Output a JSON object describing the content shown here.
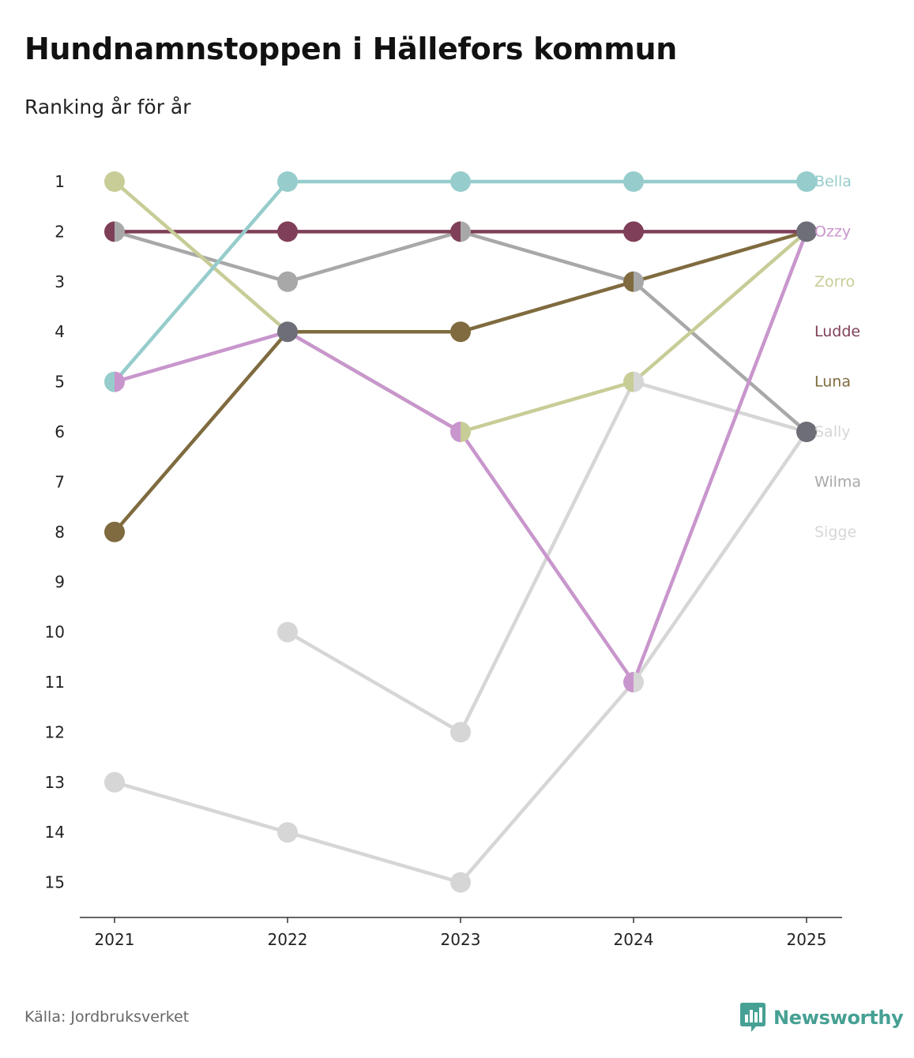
{
  "title": "Hundnamnstoppen i Hällefors kommun",
  "subtitle": "Ranking år för år",
  "source": "Källa: Jordbruksverket",
  "brand": "Newsworthy",
  "brand_color": "#46a093",
  "brand_icon": "bar-chart-speech-bubble-icon",
  "chart_data": {
    "type": "line",
    "subtitle": "Ranking år för år",
    "xlabel": "",
    "ylabel": "",
    "x": [
      "2021",
      "2022",
      "2023",
      "2024",
      "2025"
    ],
    "y_ticks": [
      "1",
      "2",
      "3",
      "4",
      "5",
      "6",
      "7",
      "8",
      "9",
      "10",
      "11",
      "12",
      "13",
      "14",
      "15"
    ],
    "ylim": [
      1,
      15
    ],
    "y_inverted": true,
    "grid": false,
    "legend": "right, labels at line ends",
    "series": [
      {
        "name": "Sigge",
        "color": "#d6d6d6",
        "values": [
          13,
          14,
          15,
          11,
          6
        ]
      },
      {
        "name": "Wilma",
        "color": "#a8a8a8",
        "values": [
          2,
          3,
          2,
          3,
          6
        ]
      },
      {
        "name": "Sally",
        "color": "#d6d6d6",
        "values": [
          null,
          10,
          12,
          5,
          6
        ]
      },
      {
        "name": "Luna",
        "color": "#7f6b3f",
        "values": [
          8,
          4,
          4,
          3,
          2
        ]
      },
      {
        "name": "Ludde",
        "color": "#7f3f58",
        "values": [
          2,
          2,
          2,
          2,
          2
        ]
      },
      {
        "name": "Zorro",
        "color": "#c8cc96",
        "values": [
          1,
          4,
          6,
          5,
          2
        ]
      },
      {
        "name": "Ozzy",
        "color": "#c896cc",
        "values": [
          5,
          4,
          6,
          11,
          2
        ]
      },
      {
        "name": "Bella",
        "color": "#96cccc",
        "values": [
          5,
          1,
          1,
          1,
          1
        ]
      }
    ],
    "legend_order": [
      "Bella",
      "Ozzy",
      "Zorro",
      "Ludde",
      "Luna",
      "Sally",
      "Wilma",
      "Sigge"
    ],
    "tie_marker_color": "#6e6e78"
  }
}
